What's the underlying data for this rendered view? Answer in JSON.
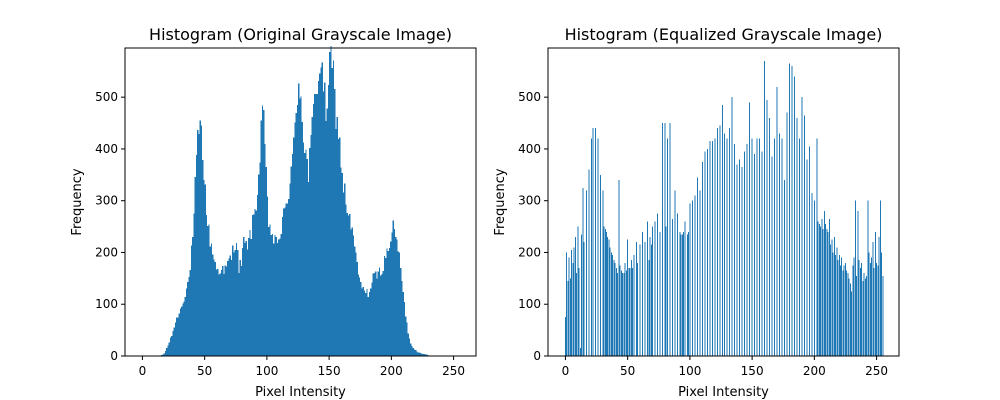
{
  "chart_data": [
    {
      "type": "bar",
      "title": "Histogram (Original Grayscale Image)",
      "xlabel": "Pixel Intensity",
      "ylabel": "Frequency",
      "xlim": [
        -14,
        268
      ],
      "ylim": [
        0,
        595
      ],
      "xticks": [
        0,
        50,
        100,
        150,
        200,
        250
      ],
      "yticks": [
        0,
        100,
        200,
        300,
        400,
        500
      ],
      "bin_count": 256,
      "color": "#1f77b4",
      "profile": [
        [
          0,
          0
        ],
        [
          14,
          0
        ],
        [
          17,
          5
        ],
        [
          20,
          20
        ],
        [
          23,
          40
        ],
        [
          26,
          65
        ],
        [
          30,
          90
        ],
        [
          34,
          120
        ],
        [
          37,
          150
        ],
        [
          39,
          200
        ],
        [
          41,
          260
        ],
        [
          42,
          330
        ],
        [
          43,
          370
        ],
        [
          44,
          410
        ],
        [
          45,
          440
        ],
        [
          46,
          438
        ],
        [
          47,
          425
        ],
        [
          48,
          395
        ],
        [
          49,
          360
        ],
        [
          50,
          320
        ],
        [
          51,
          275
        ],
        [
          52,
          260
        ],
        [
          53,
          240
        ],
        [
          55,
          210
        ],
        [
          57,
          190
        ],
        [
          59,
          170
        ],
        [
          61,
          160
        ],
        [
          63,
          175
        ],
        [
          65,
          160
        ],
        [
          67,
          170
        ],
        [
          69,
          185
        ],
        [
          71,
          190
        ],
        [
          73,
          215
        ],
        [
          75,
          220
        ],
        [
          77,
          170
        ],
        [
          79,
          180
        ],
        [
          81,
          220
        ],
        [
          83,
          210
        ],
        [
          85,
          225
        ],
        [
          87,
          240
        ],
        [
          89,
          270
        ],
        [
          91,
          300
        ],
        [
          93,
          340
        ],
        [
          94,
          390
        ],
        [
          95,
          450
        ],
        [
          96,
          455
        ],
        [
          97,
          445
        ],
        [
          98,
          410
        ],
        [
          99,
          350
        ],
        [
          100,
          290
        ],
        [
          101,
          260
        ],
        [
          103,
          240
        ],
        [
          105,
          225
        ],
        [
          107,
          215
        ],
        [
          109,
          230
        ],
        [
          111,
          240
        ],
        [
          113,
          270
        ],
        [
          115,
          290
        ],
        [
          117,
          320
        ],
        [
          119,
          360
        ],
        [
          121,
          400
        ],
        [
          123,
          470
        ],
        [
          125,
          540
        ],
        [
          127,
          500
        ],
        [
          129,
          430
        ],
        [
          131,
          390
        ],
        [
          133,
          350
        ],
        [
          135,
          410
        ],
        [
          137,
          470
        ],
        [
          139,
          520
        ],
        [
          141,
          545
        ],
        [
          143,
          565
        ],
        [
          145,
          520
        ],
        [
          147,
          470
        ],
        [
          149,
          530
        ],
        [
          151,
          570
        ],
        [
          153,
          540
        ],
        [
          155,
          470
        ],
        [
          157,
          430
        ],
        [
          159,
          380
        ],
        [
          161,
          330
        ],
        [
          163,
          300
        ],
        [
          165,
          270
        ],
        [
          167,
          250
        ],
        [
          169,
          230
        ],
        [
          171,
          190
        ],
        [
          173,
          160
        ],
        [
          175,
          140
        ],
        [
          177,
          125
        ],
        [
          179,
          130
        ],
        [
          181,
          120
        ],
        [
          183,
          130
        ],
        [
          185,
          150
        ],
        [
          187,
          155
        ],
        [
          189,
          160
        ],
        [
          191,
          165
        ],
        [
          193,
          175
        ],
        [
          195,
          190
        ],
        [
          197,
          210
        ],
        [
          199,
          230
        ],
        [
          201,
          245
        ],
        [
          203,
          235
        ],
        [
          205,
          210
        ],
        [
          207,
          170
        ],
        [
          209,
          120
        ],
        [
          211,
          80
        ],
        [
          213,
          45
        ],
        [
          215,
          25
        ],
        [
          217,
          15
        ],
        [
          219,
          12
        ],
        [
          221,
          8
        ],
        [
          223,
          6
        ],
        [
          225,
          4
        ],
        [
          227,
          3
        ],
        [
          229,
          2
        ],
        [
          231,
          1
        ],
        [
          235,
          0
        ],
        [
          255,
          0
        ]
      ]
    },
    {
      "type": "bar",
      "title": "Histogram (Equalized Grayscale Image)",
      "xlabel": "Pixel Intensity",
      "ylabel": "Frequency",
      "xlim": [
        -14,
        268
      ],
      "ylim": [
        0,
        595
      ],
      "xticks": [
        0,
        50,
        100,
        150,
        200,
        250
      ],
      "yticks": [
        0,
        100,
        200,
        300,
        400,
        500
      ],
      "color": "#1f77b4",
      "bars": [
        [
          0,
          75
        ],
        [
          1,
          200
        ],
        [
          2,
          145
        ],
        [
          3,
          190
        ],
        [
          4,
          150
        ],
        [
          5,
          205
        ],
        [
          6,
          180
        ],
        [
          7,
          210
        ],
        [
          8,
          230
        ],
        [
          9,
          160
        ],
        [
          10,
          250
        ],
        [
          11,
          170
        ],
        [
          12,
          15
        ],
        [
          13,
          235
        ],
        [
          14,
          325
        ],
        [
          15,
          220
        ],
        [
          17,
          320
        ],
        [
          19,
          360
        ],
        [
          21,
          420
        ],
        [
          22,
          440
        ],
        [
          24,
          440
        ],
        [
          26,
          420
        ],
        [
          28,
          350
        ],
        [
          30,
          320
        ],
        [
          31,
          250
        ],
        [
          32,
          245
        ],
        [
          33,
          240
        ],
        [
          34,
          230
        ],
        [
          35,
          225
        ],
        [
          36,
          210
        ],
        [
          37,
          200
        ],
        [
          38,
          195
        ],
        [
          39,
          185
        ],
        [
          40,
          180
        ],
        [
          41,
          170
        ],
        [
          42,
          160
        ],
        [
          43,
          340
        ],
        [
          44,
          175
        ],
        [
          45,
          165
        ],
        [
          46,
          160
        ],
        [
          47,
          160
        ],
        [
          48,
          180
        ],
        [
          49,
          165
        ],
        [
          50,
          225
        ],
        [
          51,
          170
        ],
        [
          52,
          170
        ],
        [
          53,
          185
        ],
        [
          54,
          170
        ],
        [
          55,
          195
        ],
        [
          57,
          220
        ],
        [
          58,
          180
        ],
        [
          60,
          215
        ],
        [
          62,
          240
        ],
        [
          64,
          220
        ],
        [
          66,
          260
        ],
        [
          67,
          185
        ],
        [
          68,
          230
        ],
        [
          69,
          215
        ],
        [
          70,
          250
        ],
        [
          72,
          260
        ],
        [
          74,
          275
        ],
        [
          76,
          240
        ],
        [
          78,
          450
        ],
        [
          80,
          450
        ],
        [
          81,
          250
        ],
        [
          82,
          420
        ],
        [
          84,
          450
        ],
        [
          86,
          265
        ],
        [
          88,
          320
        ],
        [
          90,
          275
        ],
        [
          92,
          240
        ],
        [
          93,
          235
        ],
        [
          94,
          235
        ],
        [
          95,
          240
        ],
        [
          96,
          260
        ],
        [
          98,
          235
        ],
        [
          99,
          240
        ],
        [
          100,
          295
        ],
        [
          102,
          300
        ],
        [
          104,
          310
        ],
        [
          106,
          345
        ],
        [
          108,
          320
        ],
        [
          110,
          375
        ],
        [
          112,
          395
        ],
        [
          114,
          400
        ],
        [
          116,
          415
        ],
        [
          118,
          415
        ],
        [
          120,
          420
        ],
        [
          122,
          440
        ],
        [
          124,
          445
        ],
        [
          126,
          485
        ],
        [
          128,
          430
        ],
        [
          130,
          420
        ],
        [
          132,
          440
        ],
        [
          134,
          500
        ],
        [
          136,
          410
        ],
        [
          138,
          370
        ],
        [
          140,
          380
        ],
        [
          142,
          365
        ],
        [
          144,
          395
        ],
        [
          146,
          410
        ],
        [
          148,
          490
        ],
        [
          150,
          420
        ],
        [
          152,
          390
        ],
        [
          154,
          420
        ],
        [
          156,
          420
        ],
        [
          158,
          395
        ],
        [
          160,
          570
        ],
        [
          162,
          495
        ],
        [
          164,
          460
        ],
        [
          166,
          385
        ],
        [
          168,
          420
        ],
        [
          170,
          520
        ],
        [
          172,
          430
        ],
        [
          174,
          420
        ],
        [
          176,
          340
        ],
        [
          178,
          470
        ],
        [
          180,
          565
        ],
        [
          182,
          560
        ],
        [
          184,
          540
        ],
        [
          186,
          460
        ],
        [
          188,
          420
        ],
        [
          190,
          500
        ],
        [
          192,
          465
        ],
        [
          194,
          380
        ],
        [
          196,
          405
        ],
        [
          198,
          315
        ],
        [
          200,
          300
        ],
        [
          202,
          420
        ],
        [
          203,
          260
        ],
        [
          204,
          255
        ],
        [
          205,
          250
        ],
        [
          206,
          265
        ],
        [
          207,
          245
        ],
        [
          208,
          280
        ],
        [
          209,
          255
        ],
        [
          210,
          245
        ],
        [
          211,
          240
        ],
        [
          212,
          265
        ],
        [
          213,
          215
        ],
        [
          214,
          225
        ],
        [
          215,
          200
        ],
        [
          216,
          230
        ],
        [
          217,
          195
        ],
        [
          218,
          210
        ],
        [
          219,
          185
        ],
        [
          220,
          195
        ],
        [
          221,
          175
        ],
        [
          222,
          190
        ],
        [
          223,
          165
        ],
        [
          224,
          175
        ],
        [
          225,
          180
        ],
        [
          226,
          165
        ],
        [
          227,
          160
        ],
        [
          228,
          150
        ],
        [
          229,
          140
        ],
        [
          230,
          125
        ],
        [
          231,
          175
        ],
        [
          232,
          190
        ],
        [
          233,
          300
        ],
        [
          234,
          155
        ],
        [
          235,
          280
        ],
        [
          236,
          185
        ],
        [
          237,
          170
        ],
        [
          238,
          180
        ],
        [
          239,
          145
        ],
        [
          240,
          160
        ],
        [
          241,
          150
        ],
        [
          242,
          155
        ],
        [
          243,
          300
        ],
        [
          244,
          200
        ],
        [
          245,
          180
        ],
        [
          246,
          190
        ],
        [
          247,
          220
        ],
        [
          248,
          170
        ],
        [
          249,
          240
        ],
        [
          250,
          180
        ],
        [
          251,
          175
        ],
        [
          252,
          230
        ],
        [
          253,
          300
        ],
        [
          254,
          200
        ],
        [
          255,
          155
        ]
      ]
    }
  ]
}
